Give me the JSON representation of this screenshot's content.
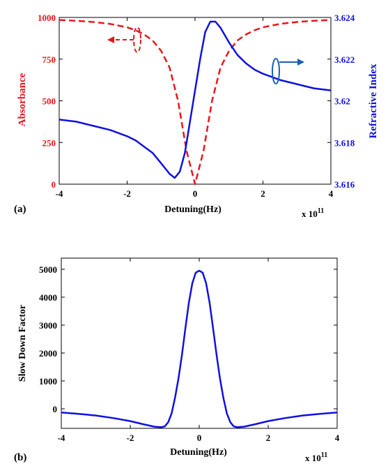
{
  "chart_data": [
    {
      "type": "line",
      "panel_label": "(a)",
      "xlabel": "Detuning(Hz)",
      "x_multiplier_label": {
        "base": "x 10",
        "exp": "11"
      },
      "xlim": [
        -4,
        4
      ],
      "xticks": [
        "-4",
        "-2",
        "0",
        "2",
        "4"
      ],
      "xtick_values": [
        -4,
        -2,
        0,
        2,
        4
      ],
      "left_axis": {
        "label": "Absorbance",
        "color": "#e8161c",
        "ylim": [
          0,
          1000
        ],
        "ticks": [
          "0",
          "250",
          "500",
          "750",
          "1000"
        ],
        "tick_values": [
          0,
          250,
          500,
          750,
          1000
        ]
      },
      "right_axis": {
        "label": "Refractive Index",
        "color": "#1010e0",
        "ylim": [
          3.616,
          3.624
        ],
        "ticks": [
          "3.616",
          "3.618",
          "3.62",
          "3.622",
          "3.624"
        ],
        "tick_values": [
          3.616,
          3.618,
          3.62,
          3.622,
          3.624
        ]
      },
      "series": [
        {
          "axis": "left",
          "style": "dashed",
          "color": "#e8161c",
          "x": [
            -4,
            -3.5,
            -3,
            -2.5,
            -2,
            -1.75,
            -1.5,
            -1.25,
            -1,
            -0.75,
            -0.5,
            -0.25,
            0,
            0.25,
            0.5,
            0.75,
            1,
            1.25,
            1.5,
            1.75,
            2,
            2.5,
            3,
            3.5,
            4
          ],
          "values": [
            985,
            980,
            973,
            961,
            941,
            923,
            898,
            862,
            800,
            700,
            500,
            200,
            0,
            200,
            500,
            700,
            800,
            862,
            898,
            923,
            941,
            961,
            973,
            980,
            985
          ]
        },
        {
          "axis": "right",
          "style": "solid",
          "color": "#1010e0",
          "x": [
            -4,
            -3.5,
            -3,
            -2.5,
            -2,
            -1.75,
            -1.5,
            -1.25,
            -1,
            -0.75,
            -0.6,
            -0.45,
            -0.3,
            -0.15,
            0,
            0.15,
            0.3,
            0.45,
            0.6,
            0.75,
            1,
            1.25,
            1.5,
            1.75,
            2,
            2.5,
            3,
            3.5,
            4
          ],
          "values": [
            3.6191,
            3.619,
            3.6188,
            3.6186,
            3.6183,
            3.6181,
            3.6178,
            3.6175,
            3.617,
            3.6165,
            3.6163,
            3.6166,
            3.6175,
            3.619,
            3.6205,
            3.622,
            3.6233,
            3.6238,
            3.6238,
            3.6235,
            3.6228,
            3.6222,
            3.6218,
            3.6215,
            3.6213,
            3.621,
            3.6208,
            3.6206,
            3.6205
          ]
        }
      ],
      "annotations": [
        {
          "type": "ellipse-with-arrow",
          "series": "left",
          "arrow_direction": "left",
          "color": "#e8161c",
          "style": "dashed"
        },
        {
          "type": "ellipse-with-arrow",
          "series": "right",
          "arrow_direction": "right",
          "color": "#1a5fb4",
          "style": "solid"
        }
      ]
    },
    {
      "type": "line",
      "panel_label": "(b)",
      "xlabel": "Detuning(Hz)",
      "x_multiplier_label": {
        "base": "x 10",
        "exp": "11"
      },
      "ylabel": "Slow Down Factor",
      "xlim": [
        -4,
        4
      ],
      "ylim": [
        -700,
        5400
      ],
      "xticks": [
        "-4",
        "-2",
        "0",
        "2",
        "4"
      ],
      "xtick_values": [
        -4,
        -2,
        0,
        2,
        4
      ],
      "yticks": [
        "0",
        "1000",
        "2000",
        "3000",
        "4000",
        "5000"
      ],
      "ytick_values": [
        0,
        1000,
        2000,
        3000,
        4000,
        5000
      ],
      "series": [
        {
          "color": "#1010e0",
          "style": "solid",
          "x": [
            -4,
            -3.5,
            -3,
            -2.5,
            -2,
            -1.6,
            -1.3,
            -1.1,
            -1.0,
            -0.9,
            -0.8,
            -0.7,
            -0.6,
            -0.5,
            -0.4,
            -0.3,
            -0.2,
            -0.1,
            0,
            0.1,
            0.2,
            0.3,
            0.4,
            0.5,
            0.6,
            0.7,
            0.8,
            0.9,
            1.0,
            1.1,
            1.3,
            1.6,
            2,
            2.5,
            3,
            3.5,
            4
          ],
          "values": [
            -130,
            -180,
            -240,
            -330,
            -440,
            -560,
            -640,
            -660,
            -630,
            -480,
            -160,
            400,
            1100,
            1950,
            2900,
            3800,
            4500,
            4880,
            4950,
            4880,
            4500,
            3800,
            2900,
            1950,
            1100,
            400,
            -160,
            -480,
            -630,
            -660,
            -640,
            -560,
            -440,
            -330,
            -240,
            -180,
            -130
          ]
        }
      ]
    }
  ]
}
